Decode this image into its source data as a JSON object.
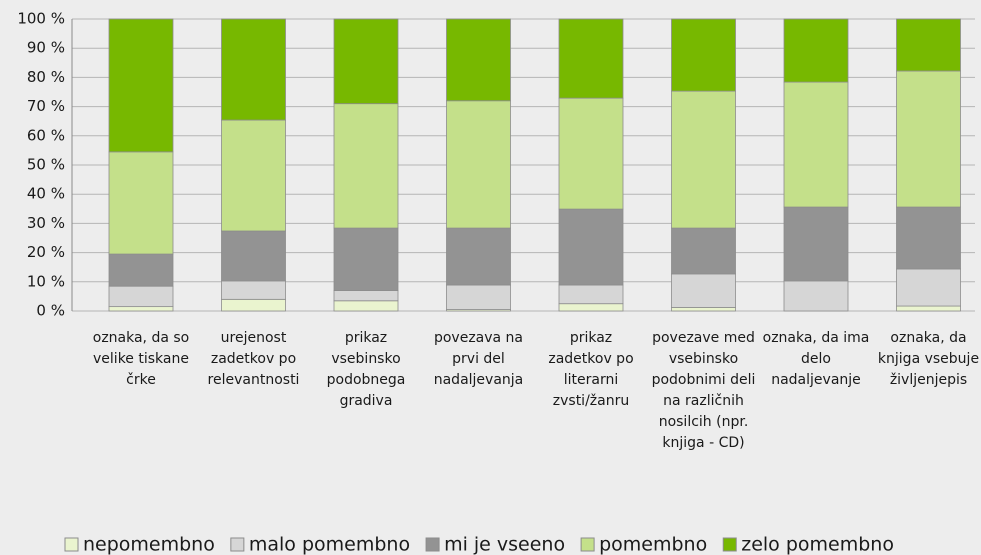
{
  "chart_data": {
    "type": "stacked_bar",
    "categories": [
      "oznaka, da so velike tiskane črke",
      "urejenost zadetkov po relevantnosti",
      "prikaz vsebinsko podobnega gradiva",
      "povezava na prvi del nadaljevanja",
      "prikaz zadetkov po literarni zvsti/žanru",
      "povezave med vsebinsko podobnimi deli na različnih nosilcih (npr. knjiga - CD)",
      "oznaka, da ima delo nadaljevanje",
      "oznaka, da knjiga vsebuje življenjepis"
    ],
    "series": [
      {
        "name": "nepomembno",
        "color": "#eaf4cf",
        "values": [
          1.5,
          4,
          3.5,
          0.5,
          2.5,
          1.2,
          0,
          1.7
        ]
      },
      {
        "name": "malo pomembno",
        "color": "#d6d6d6",
        "values": [
          7,
          6.3,
          3.5,
          8.4,
          6.4,
          11.5,
          10.3,
          12.7
        ]
      },
      {
        "name": "mi je vseeno",
        "color": "#939393",
        "values": [
          11,
          17.1,
          21.4,
          19.5,
          26,
          15.7,
          25.3,
          21.2
        ]
      },
      {
        "name": "pomembno",
        "color": "#c4e08a",
        "values": [
          35,
          38,
          42.6,
          43.6,
          38,
          46.9,
          42.8,
          46.6
        ]
      },
      {
        "name": "zelo pomembno",
        "color": "#77b800",
        "values": [
          45.5,
          34.6,
          29,
          28,
          27.1,
          24.7,
          21.6,
          17.8
        ]
      }
    ],
    "ylim": [
      0,
      100
    ],
    "yticks": [
      {
        "value": 0,
        "label": "0 %"
      },
      {
        "value": 10,
        "label": "10 %"
      },
      {
        "value": 20,
        "label": "20 %"
      },
      {
        "value": 30,
        "label": "30 %"
      },
      {
        "value": 40,
        "label": "40 %"
      },
      {
        "value": 50,
        "label": "50 %"
      },
      {
        "value": 60,
        "label": "60 %"
      },
      {
        "value": 70,
        "label": "70 %"
      },
      {
        "value": 80,
        "label": "80 %"
      },
      {
        "value": 90,
        "label": "90 %"
      },
      {
        "value": 100,
        "label": "100 %"
      }
    ],
    "grid": true,
    "legend": "bottom"
  }
}
